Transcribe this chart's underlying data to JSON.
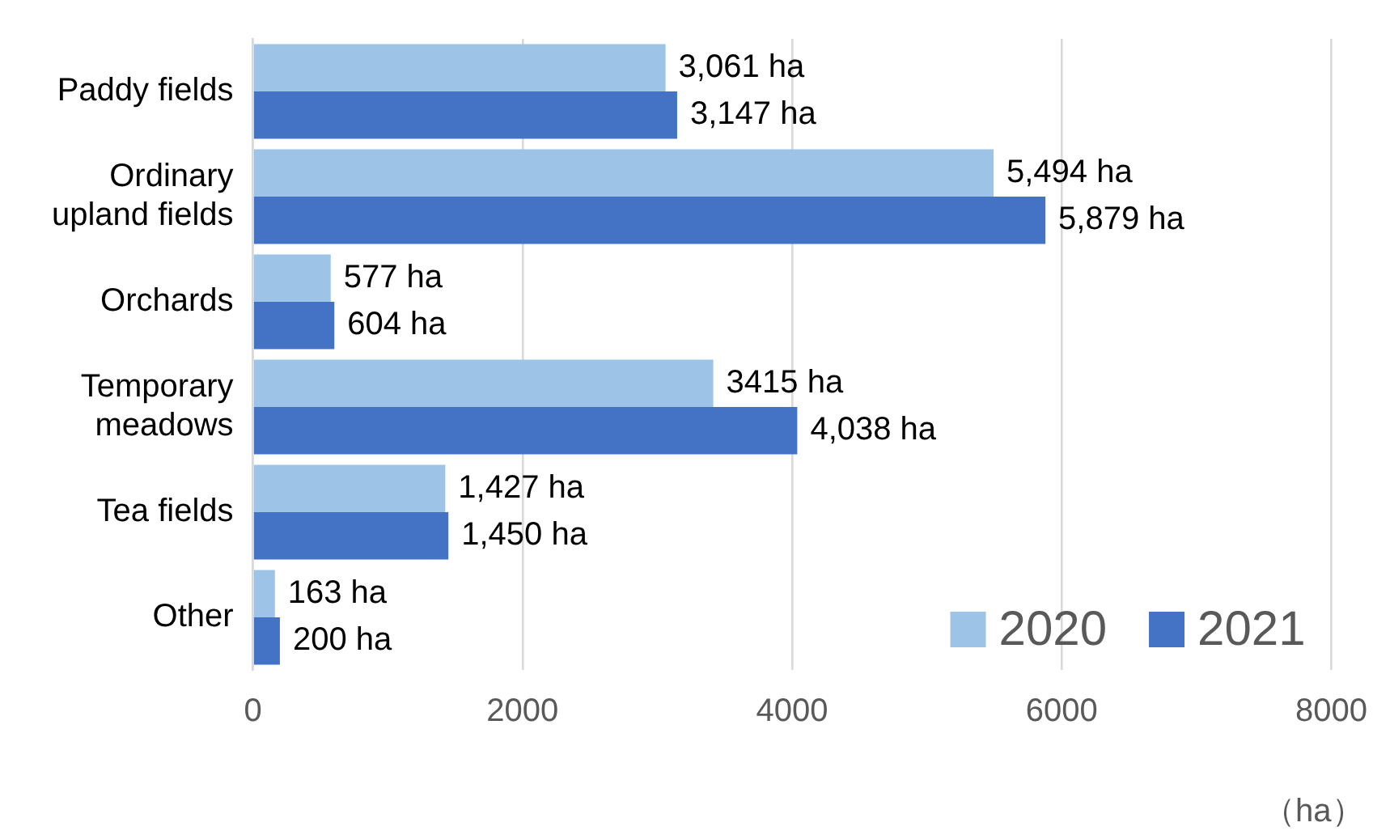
{
  "chart_data": {
    "type": "bar",
    "orientation": "horizontal",
    "xlabel": "（ha）",
    "categories": [
      "Paddy fields",
      "Ordinary upland fields",
      "Orchards",
      "Temporary meadows",
      "Tea fields",
      "Other"
    ],
    "series": [
      {
        "name": "2020",
        "color": "#9dc3e6",
        "values": [
          3061,
          5494,
          577,
          3415,
          1427,
          163
        ],
        "value_labels": [
          "3,061 ha",
          "5,494 ha",
          "577 ha",
          "3415 ha",
          "1,427 ha",
          "163 ha"
        ]
      },
      {
        "name": "2021",
        "color": "#4472c4",
        "values": [
          3147,
          5879,
          604,
          4038,
          1450,
          200
        ],
        "value_labels": [
          "3,147 ha",
          "5,879 ha",
          "604 ha",
          "4,038 ha",
          "1,450 ha",
          "200 ha"
        ]
      }
    ],
    "xlim": [
      0,
      8000
    ],
    "xticks": [
      0,
      2000,
      4000,
      6000,
      8000
    ],
    "grid": "x",
    "legend": "bottom right"
  }
}
